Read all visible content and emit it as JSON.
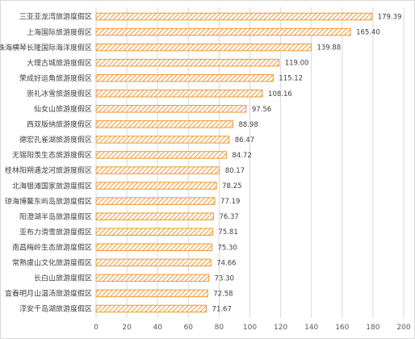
{
  "chart_data": {
    "type": "bar",
    "orientation": "horizontal",
    "categories": [
      "三亚亚龙湾旅游度假区",
      "上海国际旅游度假区",
      "珠海横琴长隆国际海洋度假区",
      "大理古城旅游度假区",
      "荣成好运角旅游度假区",
      "崇礼冰雪旅游度假区",
      "仙女山旅游度假区",
      "西双版纳旅游度假区",
      "德宏孔雀湖旅游度假区",
      "无锡阳羡生态旅游度假区",
      "桂林阳朔遇龙河旅游度假区",
      "北海银滩国家旅游度假区",
      "琼海博鳌东屿岛旅游度假区",
      "阳澄湖半岛旅游度假区",
      "亚布力滑雪旅游度假区",
      "南昌梅岭生态旅游度假区",
      "常熟虞山文化旅游度假区",
      "长白山旅游度假区",
      "宜春明月山温汤旅游度假区",
      "淳安千岛湖旅游度假区"
    ],
    "values": [
      179.39,
      165.4,
      139.88,
      119.0,
      115.12,
      108.16,
      97.56,
      88.98,
      86.47,
      84.72,
      80.17,
      78.25,
      77.19,
      76.37,
      75.81,
      75.3,
      74.66,
      73.3,
      72.58,
      71.67
    ],
    "value_labels": [
      "179.39",
      "165.40",
      "139.88",
      "119.00",
      "115.12",
      "108.16",
      "97.56",
      "88.98",
      "86.47",
      "84.72",
      "80.17",
      "78.25",
      "77.19",
      "76.37",
      "75.81",
      "75.30",
      "74.66",
      "73.30",
      "72.58",
      "71.67"
    ],
    "xlim": [
      0,
      200
    ],
    "xticks": [
      "0",
      "20",
      "40",
      "60",
      "80",
      "100",
      "120",
      "140",
      "160",
      "180",
      "200"
    ],
    "grid": "vertical",
    "bar_fill_pattern": "diagonal-hatch",
    "colors": {
      "bar_edge": "#ED9B33",
      "bar_hatch": "#F4B183",
      "grid": "#d9d9d9",
      "text": "#404040"
    }
  }
}
